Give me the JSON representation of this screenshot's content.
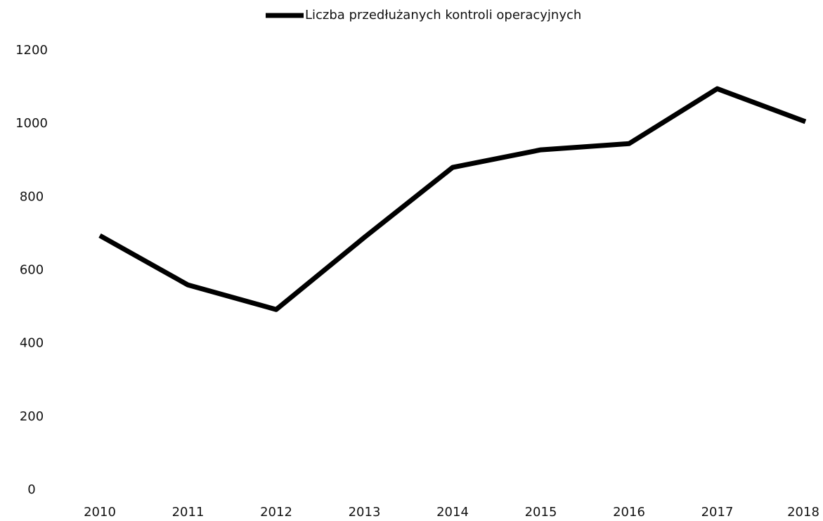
{
  "chart_data": {
    "type": "line",
    "categories": [
      "2010",
      "2011",
      "2012",
      "2013",
      "2014",
      "2015",
      "2016",
      "2017",
      "2018"
    ],
    "series": [
      {
        "name": "Liczba przedłużanych kontroli operacyjnych",
        "color": "#000000",
        "values": [
          695,
          560,
          493,
          690,
          881,
          929,
          946,
          1096,
          1006
        ]
      }
    ],
    "ylim": [
      0,
      1200
    ],
    "yticks": [
      0,
      200,
      400,
      600,
      800,
      1000,
      1200
    ],
    "grid": false,
    "legend": "top"
  }
}
